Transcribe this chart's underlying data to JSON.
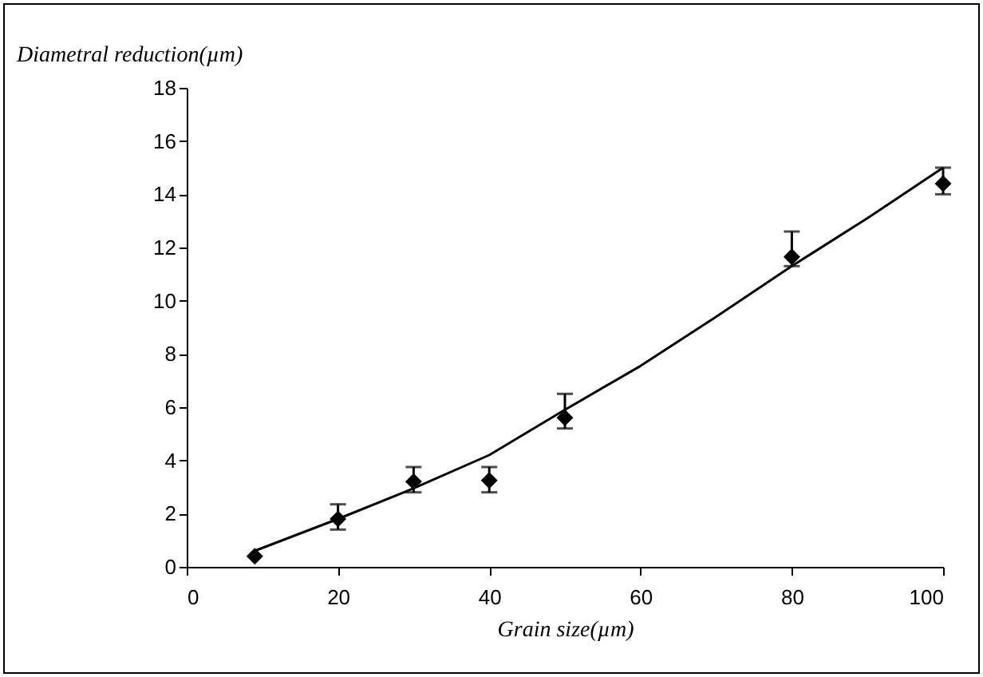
{
  "chart_data": {
    "type": "scatter",
    "xlabel": "Grain size(µm)",
    "ylabel": "Diametral reduction(µm)",
    "xlim": [
      0,
      100
    ],
    "xticks": [
      0,
      20,
      40,
      60,
      80,
      100
    ],
    "ylim": [
      0,
      18
    ],
    "yticks": [
      0,
      2,
      4,
      6,
      8,
      10,
      12,
      14,
      16,
      18
    ],
    "grid": false,
    "legend": false,
    "marker": "diamond",
    "series": [
      {
        "type": "scatter",
        "color": "#000000",
        "x": [
          9,
          20,
          30,
          40,
          50,
          80,
          100
        ],
        "values": [
          0.4,
          1.8,
          3.2,
          3.25,
          5.6,
          11.65,
          14.4
        ],
        "errors": [
          null,
          [
            1.4,
            2.35
          ],
          [
            2.8,
            3.75
          ],
          [
            2.8,
            3.75
          ],
          [
            5.2,
            6.5
          ],
          [
            11.3,
            12.6
          ],
          [
            14.0,
            15.0
          ]
        ]
      },
      {
        "type": "line",
        "color": "#000000",
        "marker": "none",
        "line_style": "solid",
        "x": [
          9,
          20,
          30,
          40,
          50,
          60,
          70,
          80,
          90,
          100
        ],
        "values": [
          0.6,
          1.8,
          2.95,
          4.2,
          5.9,
          7.55,
          9.4,
          11.3,
          13.1,
          15.0
        ]
      }
    ]
  }
}
